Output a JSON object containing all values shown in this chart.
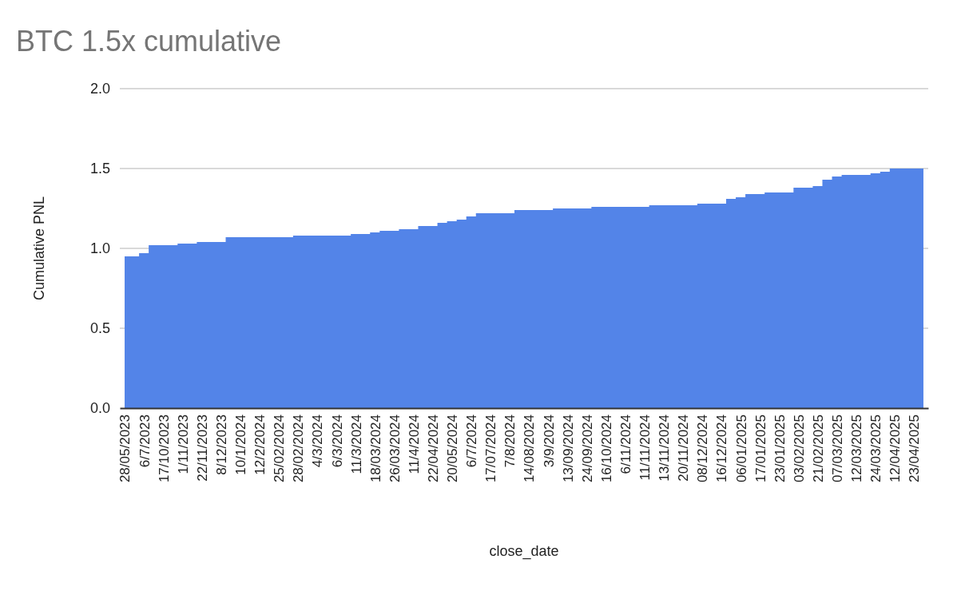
{
  "chart_data": {
    "type": "area",
    "title": "BTC 1.5x cumulative",
    "xlabel": "close_date",
    "ylabel": "Cumulative PNL",
    "categories": [
      "28/05/2023",
      null,
      "6/7/2023",
      null,
      "17/10/2023",
      null,
      "1/11/2023",
      null,
      "22/11/2023",
      null,
      "8/12/2023",
      null,
      "10/1/2024",
      null,
      "12/2/2024",
      null,
      "25/02/2024",
      null,
      "28/02/2024",
      null,
      "4/3/2024",
      null,
      "6/3/2024",
      null,
      "11/3/2024",
      null,
      "18/03/2024",
      null,
      "26/03/2024",
      null,
      "11/4/2024",
      null,
      "22/04/2024",
      null,
      "20/05/2024",
      null,
      "6/7/2024",
      null,
      "17/07/2024",
      null,
      "7/8/2024",
      null,
      "14/08/2024",
      null,
      "3/9/2024",
      null,
      "13/09/2024",
      null,
      "24/09/2024",
      null,
      "16/10/2024",
      null,
      "6/11/2024",
      null,
      "11/11/2024",
      null,
      "13/11/2024",
      null,
      "20/11/2024",
      null,
      "08/12/2024",
      null,
      "16/12/2024",
      null,
      "06/01/2025",
      null,
      "17/01/2025",
      null,
      "23/01/2025",
      null,
      "03/02/2025",
      null,
      "21/02/2025",
      null,
      "07/03/2025",
      null,
      "12/03/2025",
      null,
      "24/03/2025",
      null,
      "12/04/2025",
      null,
      "23/04/2025",
      null
    ],
    "series": [
      {
        "color": "#5384e8",
        "values": [
          0.95,
          0.95,
          0.97,
          1.02,
          1.02,
          1.02,
          1.03,
          1.03,
          1.04,
          1.04,
          1.04,
          1.07,
          1.07,
          1.07,
          1.07,
          1.07,
          1.07,
          1.07,
          1.08,
          1.08,
          1.08,
          1.08,
          1.08,
          1.08,
          1.09,
          1.09,
          1.1,
          1.11,
          1.11,
          1.12,
          1.12,
          1.14,
          1.14,
          1.16,
          1.17,
          1.18,
          1.2,
          1.22,
          1.22,
          1.22,
          1.22,
          1.24,
          1.24,
          1.24,
          1.24,
          1.25,
          1.25,
          1.25,
          1.25,
          1.26,
          1.26,
          1.26,
          1.26,
          1.26,
          1.26,
          1.27,
          1.27,
          1.27,
          1.27,
          1.27,
          1.28,
          1.28,
          1.28,
          1.31,
          1.32,
          1.34,
          1.34,
          1.35,
          1.35,
          1.35,
          1.38,
          1.38,
          1.39,
          1.43,
          1.45,
          1.46,
          1.46,
          1.46,
          1.47,
          1.48,
          1.5,
          1.5,
          1.5,
          1.5
        ]
      }
    ],
    "ylim": [
      0,
      2
    ],
    "yticks": [
      {
        "value": 0,
        "label": "0.0"
      },
      {
        "value": 0.5,
        "label": "0.5"
      },
      {
        "value": 1,
        "label": "1.0"
      },
      {
        "value": 1.5,
        "label": "1.5"
      },
      {
        "value": 2,
        "label": "2.0"
      }
    ],
    "grid": "y"
  }
}
